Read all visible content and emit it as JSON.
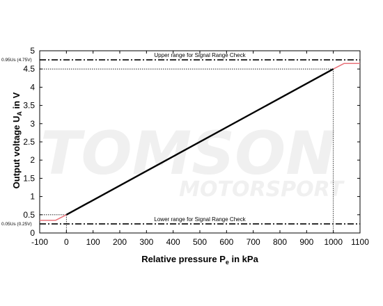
{
  "watermark": {
    "brand": "TOMSON",
    "sub": "MOTORSPORT"
  },
  "chart_data": {
    "type": "line",
    "xlabel_main": "Relative pressure P",
    "xlabel_sub": "e",
    "xlabel_unit": " in kPa",
    "ylabel_main": "Output voltage U",
    "ylabel_sub": "A",
    "ylabel_unit": "  in V",
    "xlim": [
      -100,
      1100
    ],
    "ylim": [
      0,
      5
    ],
    "xticks": [
      "-100",
      "0",
      "100",
      "200",
      "300",
      "400",
      "500",
      "600",
      "700",
      "800",
      "900",
      "1000",
      "1100"
    ],
    "yticks": [
      "0",
      "0.5",
      "1",
      "1.5",
      "2",
      "2.5",
      "3",
      "3.5",
      "4",
      "4.5",
      "5"
    ],
    "grid": false,
    "series": [
      {
        "color": "#000000",
        "x": [
          0,
          1000
        ],
        "y": [
          0.5,
          4.5
        ]
      },
      {
        "color": "#e8727a",
        "x": [
          -100,
          -40,
          0
        ],
        "y": [
          0.35,
          0.35,
          0.5
        ]
      },
      {
        "color": "#e8727a",
        "x": [
          1000,
          1040,
          1100
        ],
        "y": [
          4.5,
          4.65,
          4.65
        ]
      }
    ],
    "annotations": {
      "upper_label": "Upper range for Signal Range Check",
      "upper_level": 4.75,
      "upper_side_label": "0.95Us (4.75V)",
      "lower_label": "Lower range for Signal Range Check",
      "lower_level": 0.25,
      "lower_side_label": "0.05Us (0.25V)",
      "guide_points": [
        [
          0,
          0.5
        ],
        [
          1000,
          4.5
        ]
      ]
    }
  }
}
